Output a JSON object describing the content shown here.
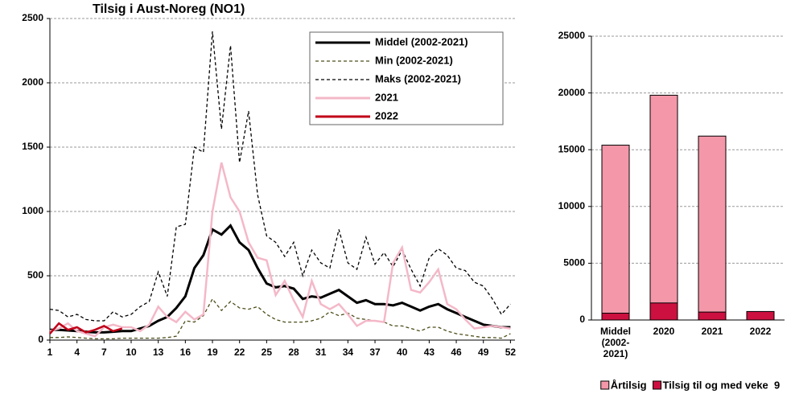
{
  "chart_data": [
    {
      "type": "line",
      "title": "Tilsig i Aust-Noreg (NO1)",
      "x": [
        1,
        2,
        3,
        4,
        5,
        6,
        7,
        8,
        9,
        10,
        11,
        12,
        13,
        14,
        15,
        16,
        17,
        18,
        19,
        20,
        21,
        22,
        23,
        24,
        25,
        26,
        27,
        28,
        29,
        30,
        31,
        32,
        33,
        34,
        35,
        36,
        37,
        38,
        39,
        40,
        41,
        42,
        43,
        44,
        45,
        46,
        47,
        48,
        49,
        50,
        51,
        52
      ],
      "xlim": [
        1,
        52.5
      ],
      "xticks": [
        1,
        4,
        7,
        10,
        13,
        16,
        19,
        22,
        25,
        28,
        31,
        34,
        37,
        40,
        43,
        46,
        49,
        52
      ],
      "ylim": [
        0,
        2500
      ],
      "yticks": [
        0,
        500,
        1000,
        1500,
        2000,
        2500
      ],
      "grid": true,
      "series": [
        {
          "name": "Middel (2002-2021)",
          "color": "#000000",
          "dashed": false,
          "values": [
            80,
            80,
            75,
            70,
            65,
            60,
            60,
            65,
            70,
            70,
            90,
            110,
            150,
            180,
            250,
            340,
            560,
            660,
            860,
            820,
            890,
            760,
            700,
            560,
            440,
            410,
            420,
            400,
            320,
            340,
            330,
            360,
            390,
            340,
            290,
            310,
            280,
            280,
            270,
            290,
            260,
            230,
            260,
            280,
            240,
            210,
            180,
            150,
            120,
            110,
            100,
            100
          ]
        },
        {
          "name": "Min (2002-2021)",
          "color": "#4d4d1a",
          "dashed": true,
          "values": [
            20,
            20,
            25,
            20,
            15,
            10,
            10,
            10,
            15,
            15,
            15,
            15,
            15,
            20,
            30,
            150,
            140,
            190,
            320,
            230,
            300,
            250,
            240,
            260,
            200,
            160,
            140,
            140,
            140,
            150,
            170,
            220,
            190,
            210,
            170,
            160,
            150,
            140,
            110,
            110,
            90,
            70,
            100,
            100,
            70,
            50,
            40,
            30,
            20,
            20,
            15,
            50
          ]
        },
        {
          "name": "Maks (2002-2021)",
          "color": "#000000",
          "dashed": true,
          "values": [
            240,
            230,
            180,
            200,
            160,
            150,
            150,
            220,
            180,
            200,
            260,
            300,
            530,
            340,
            880,
            900,
            1500,
            1460,
            2400,
            1640,
            2290,
            1380,
            1780,
            1130,
            810,
            760,
            650,
            760,
            500,
            700,
            600,
            560,
            860,
            600,
            550,
            800,
            590,
            680,
            570,
            700,
            550,
            420,
            640,
            710,
            660,
            560,
            540,
            450,
            420,
            320,
            200,
            280
          ]
        },
        {
          "name": "2021",
          "color": "#f4b8c8",
          "dashed": false,
          "values": [
            70,
            90,
            130,
            70,
            50,
            30,
            100,
            120,
            100,
            100,
            70,
            120,
            260,
            180,
            140,
            220,
            160,
            200,
            1000,
            1380,
            1110,
            1000,
            760,
            640,
            620,
            350,
            460,
            310,
            180,
            460,
            280,
            240,
            280,
            200,
            110,
            150,
            150,
            140,
            600,
            720,
            390,
            370,
            450,
            550,
            280,
            240,
            160,
            90,
            100,
            110,
            100,
            90
          ]
        },
        {
          "name": "2022",
          "color": "#c00018",
          "dashed": false,
          "values": [
            50,
            130,
            80,
            100,
            60,
            80,
            110,
            70,
            90,
            null,
            null,
            null,
            null,
            null,
            null,
            null,
            null,
            null,
            null,
            null,
            null,
            null,
            null,
            null,
            null,
            null,
            null,
            null,
            null,
            null,
            null,
            null,
            null,
            null,
            null,
            null,
            null,
            null,
            null,
            null,
            null,
            null,
            null,
            null,
            null,
            null,
            null,
            null,
            null,
            null,
            null,
            null
          ]
        }
      ]
    },
    {
      "type": "bar",
      "categories": [
        "Middel (2002-2021)",
        "2020",
        "2021",
        "2022"
      ],
      "ylim": [
        0,
        25000
      ],
      "yticks": [
        0,
        5000,
        10000,
        15000,
        20000,
        25000
      ],
      "grid": true,
      "series": [
        {
          "name": "Årtilsig",
          "color": "#f497a9",
          "values": [
            15400,
            19800,
            16200,
            null
          ]
        },
        {
          "name": "Tilsig til og med veke  9",
          "color": "#cc1040",
          "values": [
            600,
            1500,
            700,
            750
          ]
        }
      ]
    }
  ]
}
